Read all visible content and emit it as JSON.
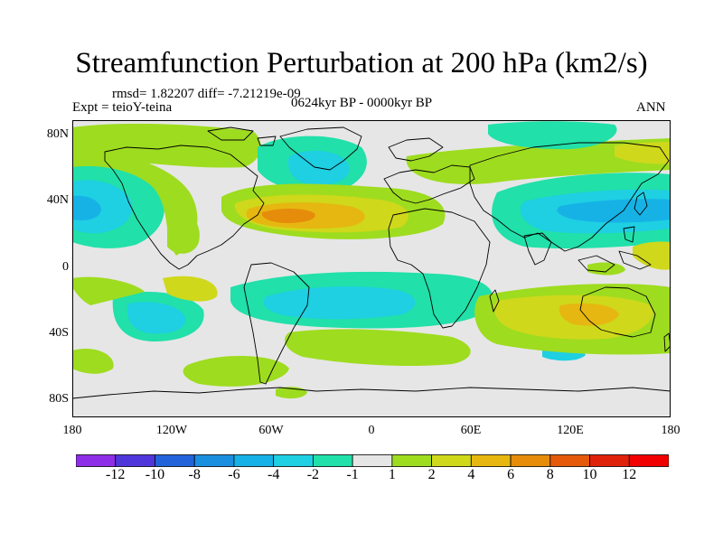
{
  "title": "Streamfunction Perturbation at 200 hPa (km2/s)",
  "stats_text": "rmsd= 1.82207 diff= -7.21219e-09",
  "expt_text": "Expt = teioY-teina",
  "period_text": "0624kyr BP - 0000kyr BP",
  "season_text": "ANN",
  "lat_labels": [
    "80N",
    "40N",
    "0",
    "40S",
    "80S"
  ],
  "lon_labels": [
    "180",
    "120W",
    "60W",
    "0",
    "60E",
    "120E",
    "180"
  ],
  "colorbar": {
    "labels": [
      "-12",
      "-10",
      "-8",
      "-6",
      "-4",
      "-2",
      "-1",
      "1",
      "2",
      "4",
      "6",
      "8",
      "10",
      "12"
    ],
    "colors": [
      "#8f2ee8",
      "#4f36db",
      "#2263dc",
      "#1a8fe0",
      "#16b2e6",
      "#1fcfe2",
      "#21e0a9",
      "#e6e6e6",
      "#9edc1f",
      "#cfd81b",
      "#e6b710",
      "#e68c0b",
      "#e45a0a",
      "#e0220a",
      "#f00000"
    ]
  },
  "colors": {
    "land_outline": "#000000",
    "background": "#e6e6e6"
  }
}
